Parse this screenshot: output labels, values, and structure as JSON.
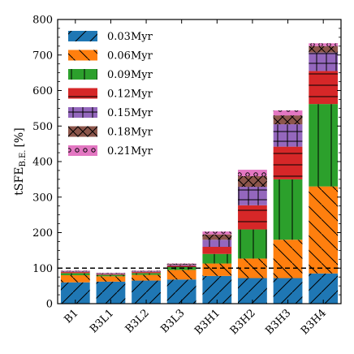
{
  "chart_data": {
    "type": "bar",
    "stacked": true,
    "categories": [
      "B1",
      "B3L1",
      "B3L2",
      "B3L3",
      "B3H1",
      "B3H2",
      "B3H3",
      "B3H4"
    ],
    "ylabel": "tSFE",
    "ylabel_sub": "B.E.",
    "ylabel_unit": "[%]",
    "ylim": [
      0,
      800
    ],
    "yticks": [
      "0",
      "100",
      "200",
      "300",
      "400",
      "500",
      "600",
      "700",
      "800"
    ],
    "reference_line": {
      "y": 100,
      "style": "dashed"
    },
    "legend_position": "top-left",
    "series": [
      {
        "name": "0.03Myr",
        "color": "#1f77b4",
        "hatch": "/",
        "values": [
          60,
          62,
          65,
          68,
          78,
          72,
          72,
          85
        ]
      },
      {
        "name": "0.06Myr",
        "color": "#ff7f0e",
        "hatch": "\\",
        "values": [
          20,
          15,
          16,
          27,
          35,
          55,
          108,
          245
        ]
      },
      {
        "name": "0.09Myr",
        "color": "#2ca02c",
        "hatch": "|",
        "values": [
          6,
          4,
          5,
          8,
          27,
          82,
          170,
          232
        ]
      },
      {
        "name": "0.12Myr",
        "color": "#d62728",
        "hatch": "-",
        "values": [
          3,
          2,
          3,
          4,
          20,
          68,
          92,
          93
        ]
      },
      {
        "name": "0.15Myr",
        "color": "#9467bd",
        "hatch": "+",
        "values": [
          2,
          2,
          2,
          3,
          20,
          52,
          63,
          52
        ]
      },
      {
        "name": "0.18Myr",
        "color": "#8c564b",
        "hatch": "x",
        "values": [
          1,
          1,
          1,
          2,
          15,
          30,
          25,
          18
        ]
      },
      {
        "name": "0.21Myr",
        "color": "#e377c2",
        "hatch": "o",
        "values": [
          1,
          1,
          1,
          1,
          8,
          18,
          14,
          8
        ]
      }
    ]
  }
}
